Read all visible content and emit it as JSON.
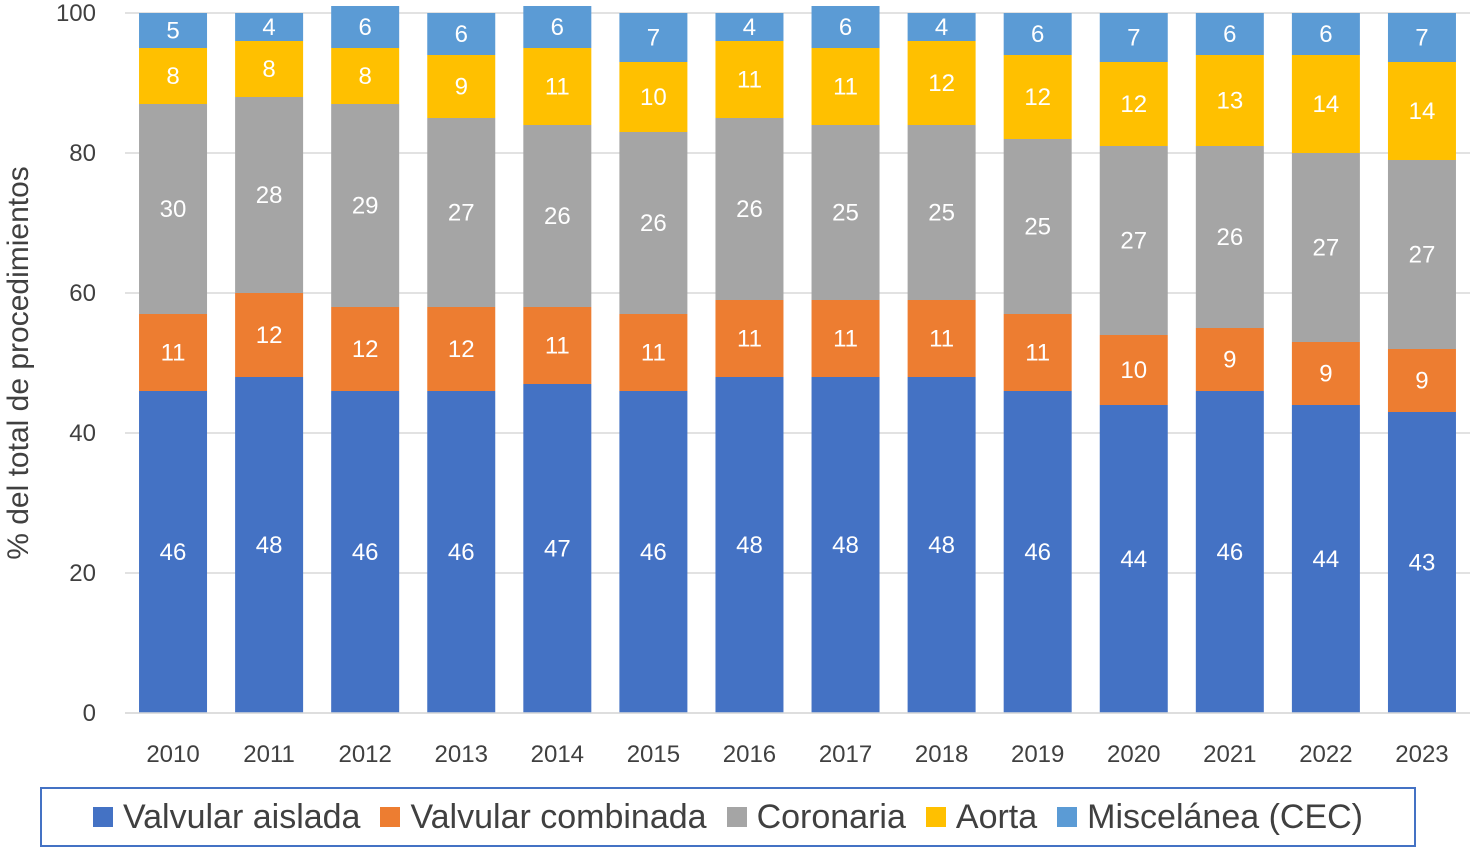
{
  "chart_data": {
    "type": "bar",
    "stacked": true,
    "ylabel": "% del total de procedimientos",
    "xlabel": "",
    "ylim": [
      0,
      100
    ],
    "yticks": [
      0,
      20,
      40,
      60,
      80,
      100
    ],
    "grid": true,
    "legend_position": "bottom",
    "categories": [
      "2010",
      "2011",
      "2012",
      "2013",
      "2014",
      "2015",
      "2016",
      "2017",
      "2018",
      "2019",
      "2020",
      "2021",
      "2022",
      "2023"
    ],
    "series": [
      {
        "name": "Valvular aislada",
        "color": "#4472C4",
        "values": [
          46,
          48,
          46,
          46,
          47,
          46,
          48,
          48,
          48,
          46,
          44,
          46,
          44,
          43
        ]
      },
      {
        "name": "Valvular combinada",
        "color": "#ED7D31",
        "values": [
          11,
          12,
          12,
          12,
          11,
          11,
          11,
          11,
          11,
          11,
          10,
          9,
          9,
          9
        ]
      },
      {
        "name": "Coronaria",
        "color": "#A5A5A5",
        "values": [
          30,
          28,
          29,
          27,
          26,
          26,
          26,
          25,
          25,
          25,
          27,
          26,
          27,
          27
        ]
      },
      {
        "name": "Aorta",
        "color": "#FFC000",
        "values": [
          8,
          8,
          8,
          9,
          11,
          10,
          11,
          11,
          12,
          12,
          12,
          13,
          14,
          14
        ]
      },
      {
        "name": "Miscelánea (CEC)",
        "color": "#5B9BD5",
        "values": [
          5,
          4,
          6,
          6,
          6,
          7,
          4,
          6,
          4,
          6,
          7,
          6,
          6,
          7
        ]
      }
    ]
  }
}
